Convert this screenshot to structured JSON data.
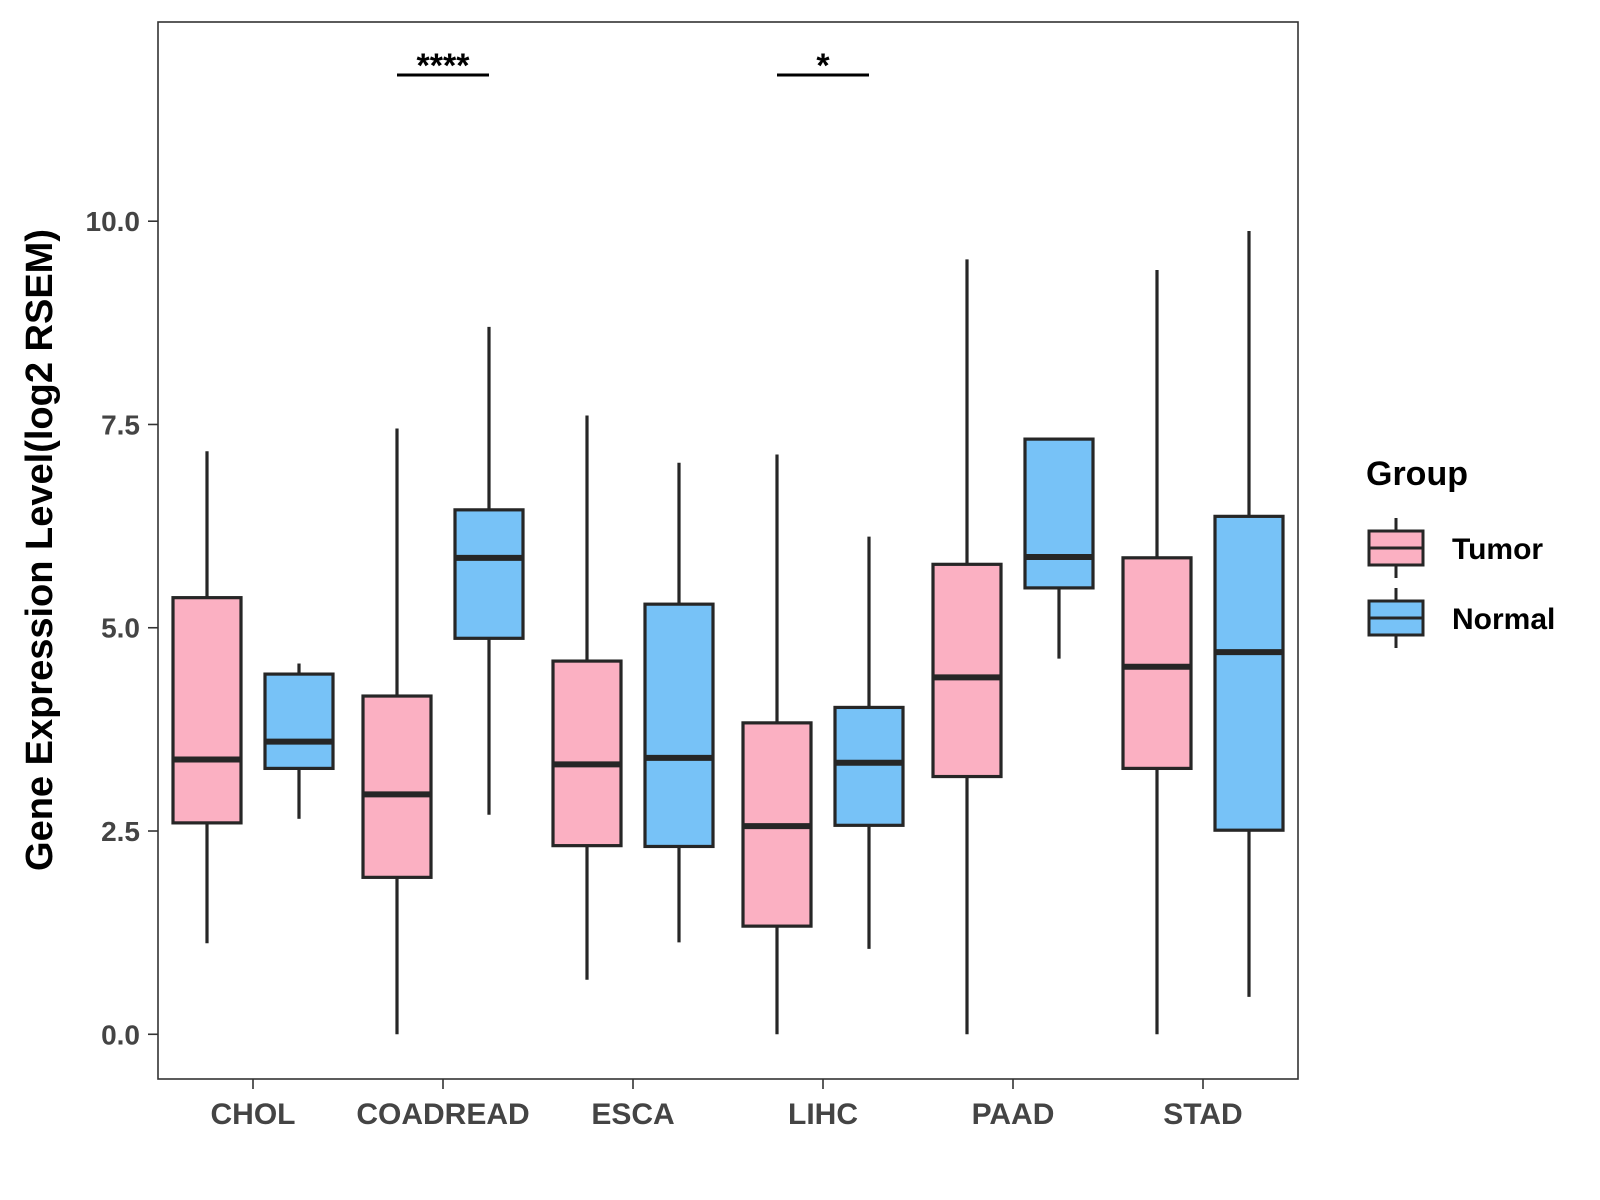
{
  "chart_data": {
    "type": "boxplot",
    "ylabel": "Gene Expression Level(log2 RSEM)",
    "xlabel": "",
    "ylim": [
      -0.55,
      12.45
    ],
    "yticks": [
      0.0,
      2.5,
      5.0,
      7.5,
      10.0
    ],
    "ytick_labels": [
      "0.0",
      "2.5",
      "5.0",
      "7.5",
      "10.0"
    ],
    "categories": [
      "CHOL",
      "COADREAD",
      "ESCA",
      "LIHC",
      "PAAD",
      "STAD"
    ],
    "grid": false,
    "legend": {
      "title": "Group",
      "position": "right",
      "entries": [
        "Tumor",
        "Normal"
      ]
    },
    "series": [
      {
        "name": "Tumor",
        "color": "#FBB0C2",
        "boxes": [
          {
            "category": "CHOL",
            "min": 1.12,
            "q1": 2.6,
            "median": 3.38,
            "q3": 5.37,
            "max": 7.17
          },
          {
            "category": "COADREAD",
            "min": 0.0,
            "q1": 1.93,
            "median": 2.95,
            "q3": 4.16,
            "max": 7.45
          },
          {
            "category": "ESCA",
            "min": 0.67,
            "q1": 2.32,
            "median": 3.32,
            "q3": 4.59,
            "max": 7.61
          },
          {
            "category": "LIHC",
            "min": 0.0,
            "q1": 1.33,
            "median": 2.56,
            "q3": 3.83,
            "max": 7.13
          },
          {
            "category": "PAAD",
            "min": 0.0,
            "q1": 3.17,
            "median": 4.39,
            "q3": 5.78,
            "max": 9.53
          },
          {
            "category": "STAD",
            "min": 0.0,
            "q1": 3.27,
            "median": 4.52,
            "q3": 5.86,
            "max": 9.4
          }
        ]
      },
      {
        "name": "Normal",
        "color": "#77C2F7",
        "boxes": [
          {
            "category": "CHOL",
            "min": 2.65,
            "q1": 3.27,
            "median": 3.6,
            "q3": 4.43,
            "max": 4.56
          },
          {
            "category": "COADREAD",
            "min": 2.7,
            "q1": 4.87,
            "median": 5.86,
            "q3": 6.45,
            "max": 8.7
          },
          {
            "category": "ESCA",
            "min": 1.13,
            "q1": 2.31,
            "median": 3.4,
            "q3": 5.29,
            "max": 7.03
          },
          {
            "category": "LIHC",
            "min": 1.05,
            "q1": 2.57,
            "median": 3.34,
            "q3": 4.02,
            "max": 6.12
          },
          {
            "category": "PAAD",
            "min": 4.62,
            "q1": 5.49,
            "median": 5.87,
            "q3": 7.32,
            "max": 7.32
          },
          {
            "category": "STAD",
            "min": 0.46,
            "q1": 2.51,
            "median": 4.7,
            "q3": 6.37,
            "max": 9.88
          }
        ]
      }
    ],
    "significance": [
      {
        "category": "COADREAD",
        "label": "****"
      },
      {
        "category": "LIHC",
        "label": "*"
      }
    ]
  }
}
